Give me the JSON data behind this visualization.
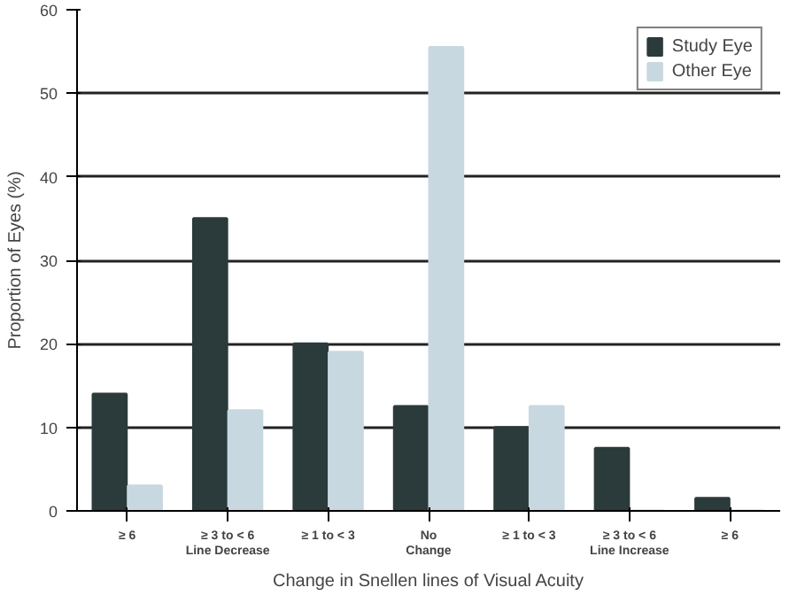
{
  "chart_data": {
    "type": "bar",
    "xlabel": "Change in Snellen lines of Visual Acuity",
    "ylabel": "Proportion of Eyes (%)",
    "categories": [
      "≥ 6",
      "≥ 3 to < 6\nLine Decrease",
      "≥ 1 to < 3",
      "No\nChange",
      "≥ 1 to < 3",
      "≥ 3 to < 6\nLine Increase",
      "≥ 6"
    ],
    "series": [
      {
        "name": "Study Eye",
        "color": "#2b3a3a",
        "values": [
          14,
          35,
          20,
          12.5,
          10,
          7.5,
          1.5
        ]
      },
      {
        "name": "Other Eye",
        "color": "#c8d8e0",
        "values": [
          3,
          12,
          19,
          55.5,
          12.5,
          0,
          0
        ]
      }
    ],
    "ylim": [
      0,
      60
    ],
    "yticks": [
      0,
      10,
      20,
      30,
      40,
      50,
      60
    ],
    "grid": "y",
    "legend": "top right"
  }
}
